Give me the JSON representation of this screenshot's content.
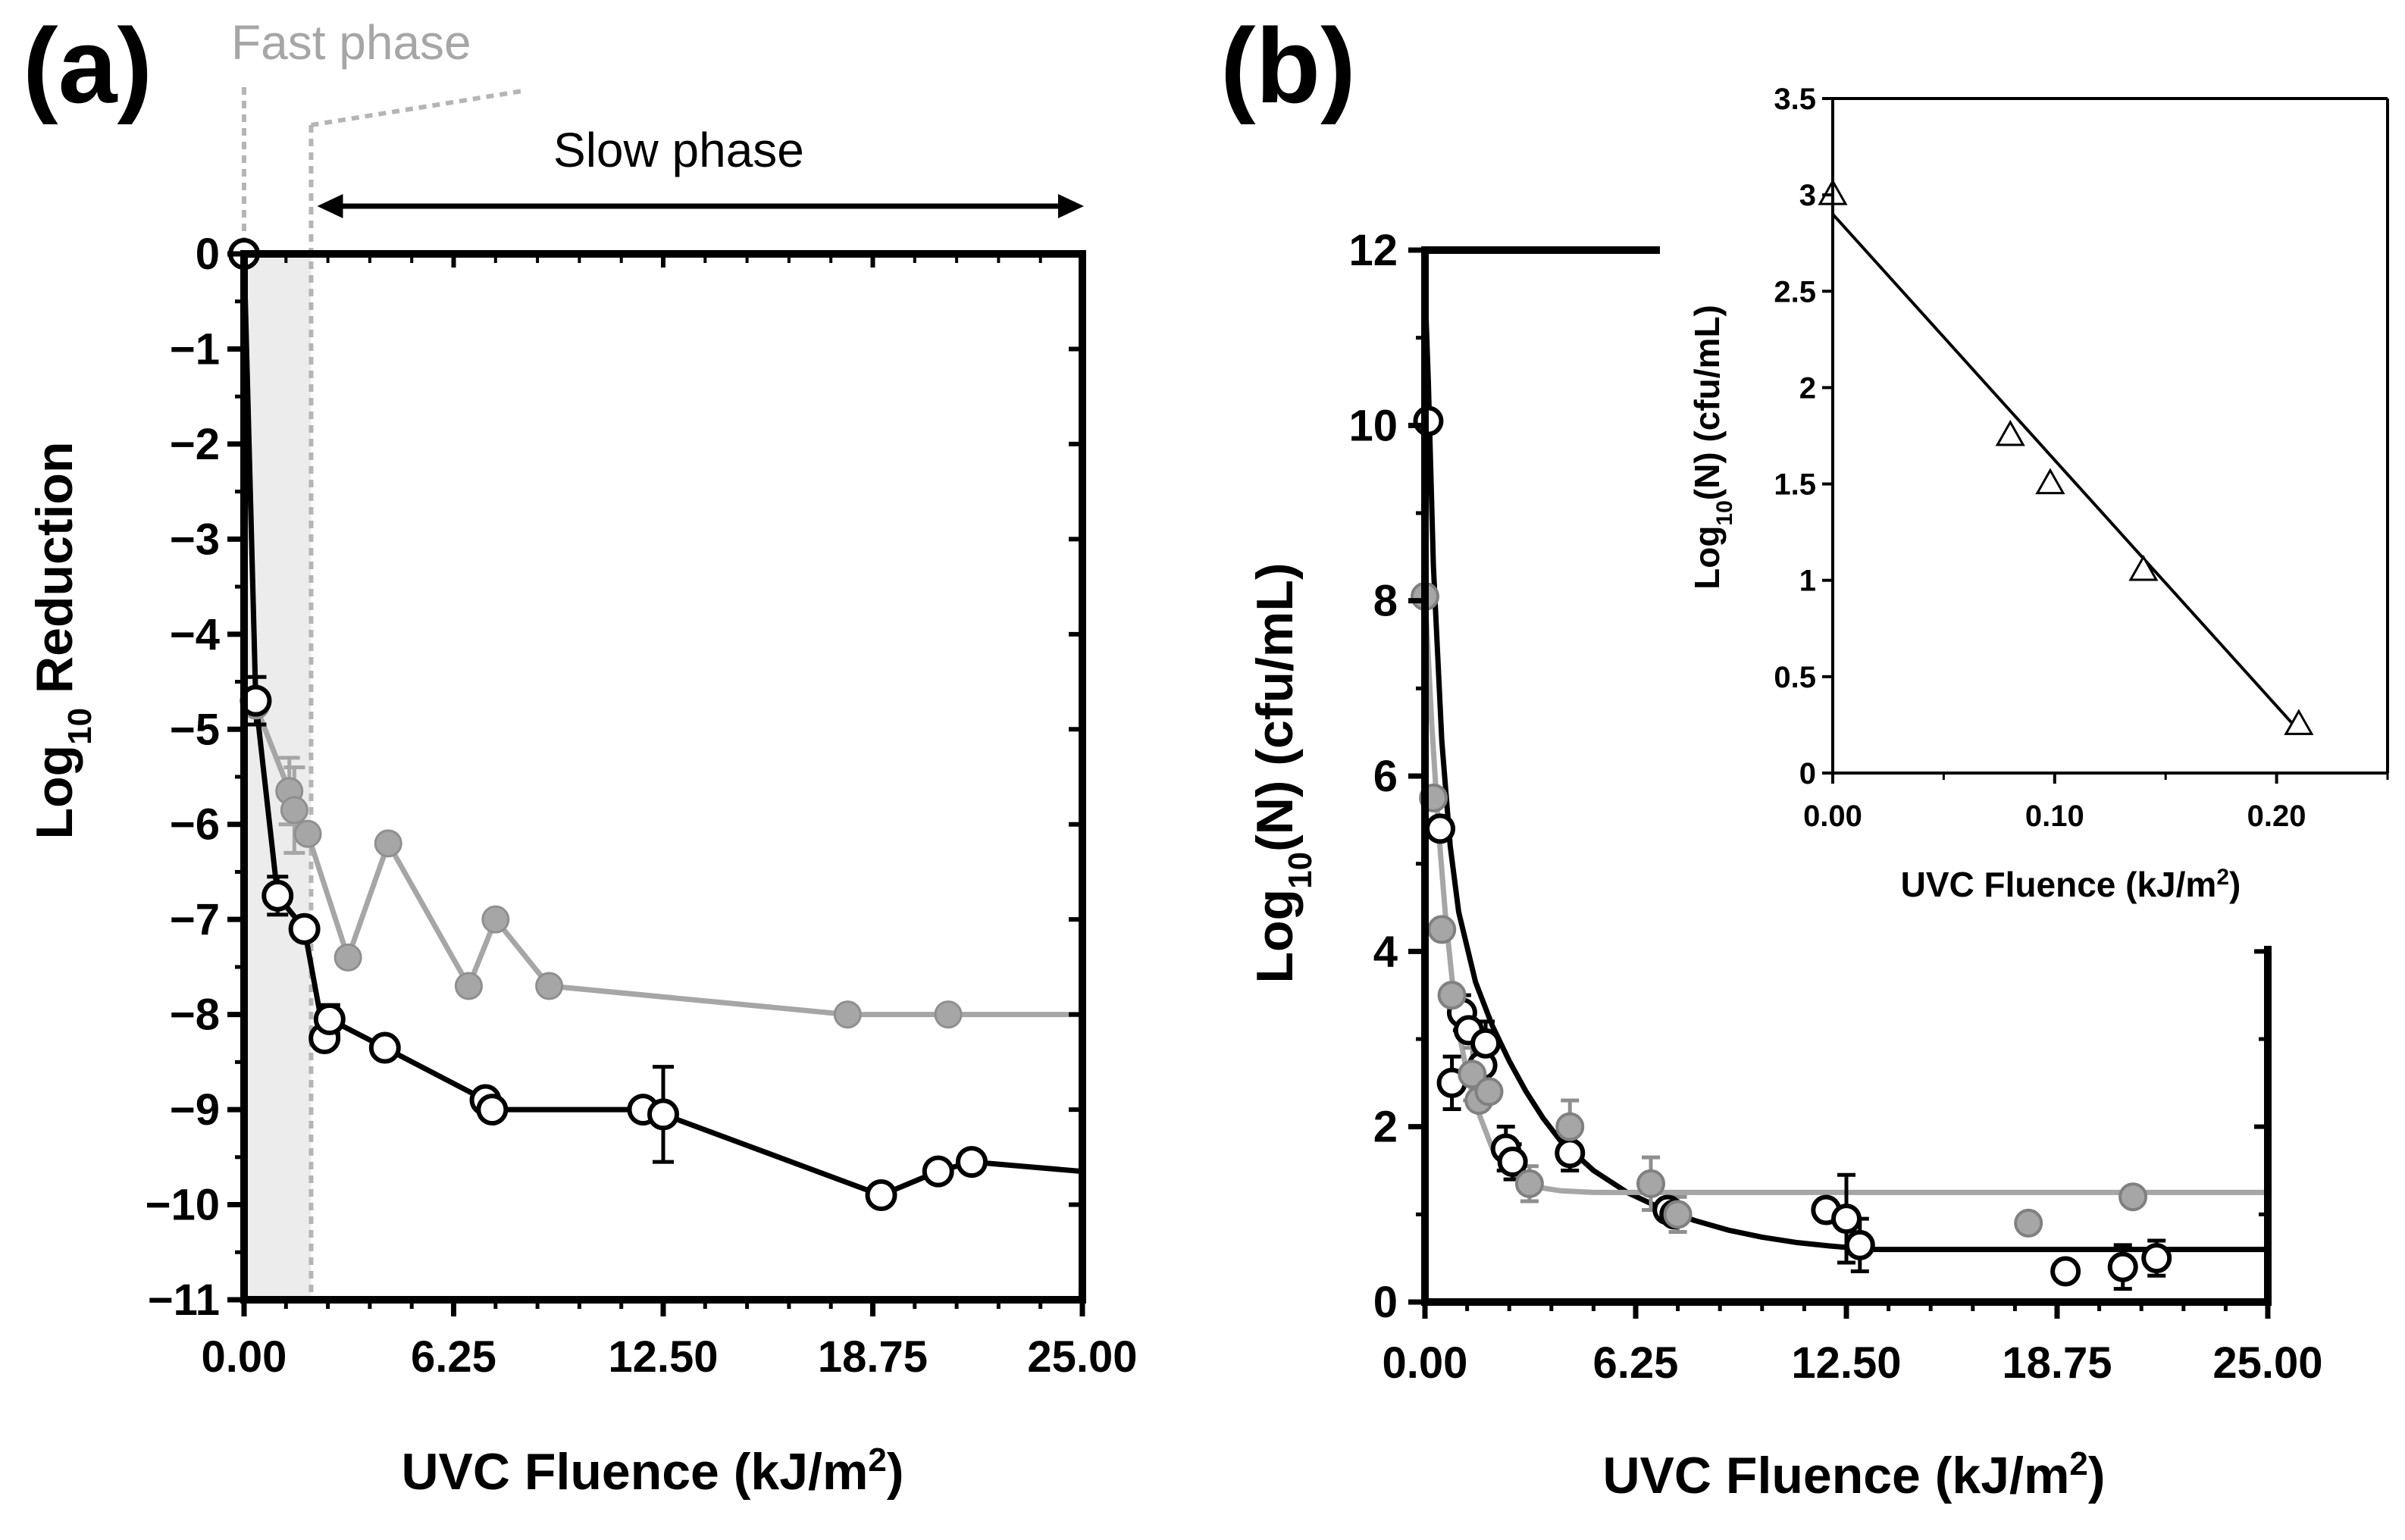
{
  "figure": {
    "panel_a_label": "(a)",
    "panel_b_label": "(b)",
    "annotations": {
      "fast_phase": "Fast phase",
      "slow_phase": "Slow phase"
    }
  },
  "chart_data": [
    {
      "id": "panel_a",
      "type": "line",
      "title": "",
      "xlabel": "UVC Fluence (kJ/m²)",
      "xlabel_main": "UVC Fluence (kJ/m",
      "xlabel_sup": "2",
      "xlabel_end": ")",
      "ylabel": "Log10 Reduction",
      "ylabel_main": "Log",
      "ylabel_sub": "10",
      "ylabel_end": " Reduction",
      "xlim": [
        0,
        25
      ],
      "ylim": [
        -11,
        0
      ],
      "xticks": [
        0,
        6.25,
        12.5,
        18.75,
        25
      ],
      "xtick_labels": [
        "0.00",
        "6.25",
        "12.50",
        "18.75",
        "25.00"
      ],
      "yticks": [
        0,
        -1,
        -2,
        -3,
        -4,
        -5,
        -6,
        -7,
        -8,
        -9,
        -10,
        -11
      ],
      "ytick_labels": [
        "0",
        "−1",
        "−2",
        "−3",
        "−4",
        "−5",
        "−6",
        "−7",
        "−8",
        "−9",
        "−10",
        "−11"
      ],
      "shaded_region": [
        0,
        2
      ],
      "series": [
        {
          "name": "grey",
          "color": "#a6a6a6",
          "marker": "filled-circle",
          "x": [
            0,
            0.35,
            1.35,
            1.5,
            1.9,
            3.1,
            4.3,
            6.7,
            7.5,
            9.1,
            18.0,
            21.0,
            25.0
          ],
          "y": [
            0,
            -4.75,
            -5.65,
            -5.85,
            -6.1,
            -7.4,
            -6.2,
            -7.7,
            -7.0,
            -7.7,
            -8.0,
            -8.0,
            -8.0
          ],
          "markers": [
            true,
            true,
            true,
            true,
            true,
            true,
            true,
            true,
            true,
            true,
            true,
            true,
            false
          ],
          "error": [
            0,
            0,
            0.35,
            0.45,
            0,
            0,
            0,
            0,
            0,
            0,
            0,
            0,
            0
          ]
        },
        {
          "name": "black",
          "color": "#000000",
          "marker": "open-circle",
          "x": [
            0,
            0.35,
            1.0,
            1.8,
            2.4,
            2.55,
            4.2,
            7.2,
            7.4,
            11.9,
            12.5,
            19.0,
            20.7,
            21.7,
            25.0
          ],
          "y": [
            0,
            -4.7,
            -6.75,
            -7.1,
            -8.25,
            -8.05,
            -8.35,
            -8.9,
            -9.0,
            -9.0,
            -9.05,
            -9.9,
            -9.65,
            -9.55,
            -9.65
          ],
          "markers": [
            true,
            true,
            true,
            true,
            true,
            true,
            true,
            true,
            true,
            true,
            true,
            true,
            true,
            true,
            false
          ],
          "error": [
            0,
            0.25,
            0.2,
            0,
            0,
            0.15,
            0,
            0,
            0,
            0,
            0.5,
            0,
            0,
            0,
            0
          ]
        }
      ]
    },
    {
      "id": "panel_b",
      "type": "scatter",
      "title": "",
      "xlabel": "UVC Fluence (kJ/m²)",
      "xlabel_main": "UVC Fluence (kJ/m",
      "xlabel_sup": "2",
      "xlabel_end": ")",
      "ylabel": "Log10(N) (cfu/mL)",
      "ylabel_main": "Log",
      "ylabel_sub": "10",
      "ylabel_end": "(N) (cfu/mL)",
      "xlim": [
        0,
        25
      ],
      "ylim": [
        0,
        12
      ],
      "xticks": [
        0,
        6.25,
        12.5,
        18.75,
        25
      ],
      "xtick_labels": [
        "0.00",
        "6.25",
        "12.50",
        "18.75",
        "25.00"
      ],
      "yticks": [
        0,
        2,
        4,
        6,
        8,
        10,
        12
      ],
      "ytick_labels": [
        "0",
        "2",
        "4",
        "6",
        "8",
        "10",
        "12"
      ],
      "series": [
        {
          "name": "black",
          "color": "#000000",
          "marker": "open-circle",
          "x": [
            0.1,
            0.45,
            0.8,
            1.1,
            1.3,
            1.7,
            1.8,
            2.4,
            2.6,
            4.3,
            7.2,
            7.4,
            11.9,
            12.5,
            12.9,
            19.0,
            20.7,
            21.7
          ],
          "y": [
            10.05,
            5.4,
            2.5,
            3.3,
            3.1,
            2.7,
            2.95,
            1.75,
            1.6,
            1.7,
            1.05,
            1.0,
            1.05,
            0.95,
            0.65,
            0.35,
            0.4,
            0.5
          ],
          "error": [
            0,
            0,
            0.3,
            0.2,
            0,
            0,
            0.25,
            0.25,
            0.2,
            0.2,
            0,
            0,
            0,
            0.5,
            0.3,
            0,
            0.25,
            0.2
          ],
          "fit": {
            "x": [
              0,
              0.1,
              0.25,
              0.5,
              0.75,
              1,
              1.5,
              2,
              2.5,
              3,
              3.5,
              4,
              5,
              6,
              7,
              8,
              9,
              10,
              11,
              12,
              13.2,
              14,
              16,
              18,
              20,
              22,
              25
            ],
            "y": [
              11.6,
              10.5,
              8.4,
              6.4,
              5.2,
              4.45,
              3.65,
              3.15,
              2.75,
              2.4,
              2.1,
              1.85,
              1.5,
              1.25,
              1.07,
              0.93,
              0.82,
              0.74,
              0.68,
              0.64,
              0.6,
              0.6,
              0.6,
              0.6,
              0.6,
              0.6,
              0.6
            ]
          }
        },
        {
          "name": "grey",
          "color": "#a6a6a6",
          "marker": "filled-circle",
          "x": [
            0,
            0.25,
            0.5,
            0.8,
            1.4,
            1.6,
            1.9,
            3.1,
            4.3,
            6.7,
            7.5,
            17.9,
            21.0
          ],
          "y": [
            8.05,
            5.75,
            4.25,
            3.5,
            2.6,
            2.3,
            2.4,
            1.35,
            2.0,
            1.35,
            1.0,
            0.9,
            1.2
          ],
          "error": [
            0,
            0,
            0,
            0,
            0.3,
            0,
            0,
            0.2,
            0.3,
            0.3,
            0.2,
            0,
            0
          ],
          "fit": {
            "x": [
              0,
              0.2,
              0.4,
              0.6,
              0.8,
              1,
              1.25,
              1.5,
              2,
              2.5,
              3,
              3.5,
              4,
              5,
              6,
              8,
              10,
              15,
              20,
              25
            ],
            "y": [
              8.1,
              6.6,
              5.4,
              4.45,
              3.7,
              3.1,
              2.6,
              2.25,
              1.75,
              1.5,
              1.37,
              1.3,
              1.27,
              1.25,
              1.25,
              1.25,
              1.25,
              1.25,
              1.25,
              1.25
            ]
          }
        }
      ]
    },
    {
      "id": "panel_b_inset",
      "type": "scatter",
      "title": "",
      "xlabel": "UVC Fluence (kJ/m²)",
      "xlabel_main": "UVC Fluence (kJ/m",
      "xlabel_sup": "2",
      "xlabel_end": ")",
      "ylabel": "Log10(N) (cfu/mL)",
      "ylabel_main": "Log",
      "ylabel_sub": "10",
      "ylabel_end": "(N) (cfu/mL)",
      "xlim": [
        0,
        0.25
      ],
      "ylim": [
        0,
        3.5
      ],
      "xticks": [
        0,
        0.1,
        0.2
      ],
      "xtick_labels": [
        "0.00",
        "0.10",
        "0.20"
      ],
      "yticks": [
        0,
        0.5,
        1,
        1.5,
        2,
        2.5,
        3,
        3.5
      ],
      "ytick_labels": [
        "0",
        "0.5",
        "1",
        "1.5",
        "2",
        "2.5",
        "3",
        "3.5"
      ],
      "series": [
        {
          "name": "triangles",
          "color": "#000000",
          "marker": "open-triangle",
          "x": [
            0,
            0.08,
            0.098,
            0.14,
            0.21
          ],
          "y": [
            3.0,
            1.75,
            1.5,
            1.05,
            0.25
          ],
          "fit": {
            "x": [
              0,
              0.21
            ],
            "y": [
              2.9,
              0.22
            ]
          }
        }
      ]
    }
  ]
}
